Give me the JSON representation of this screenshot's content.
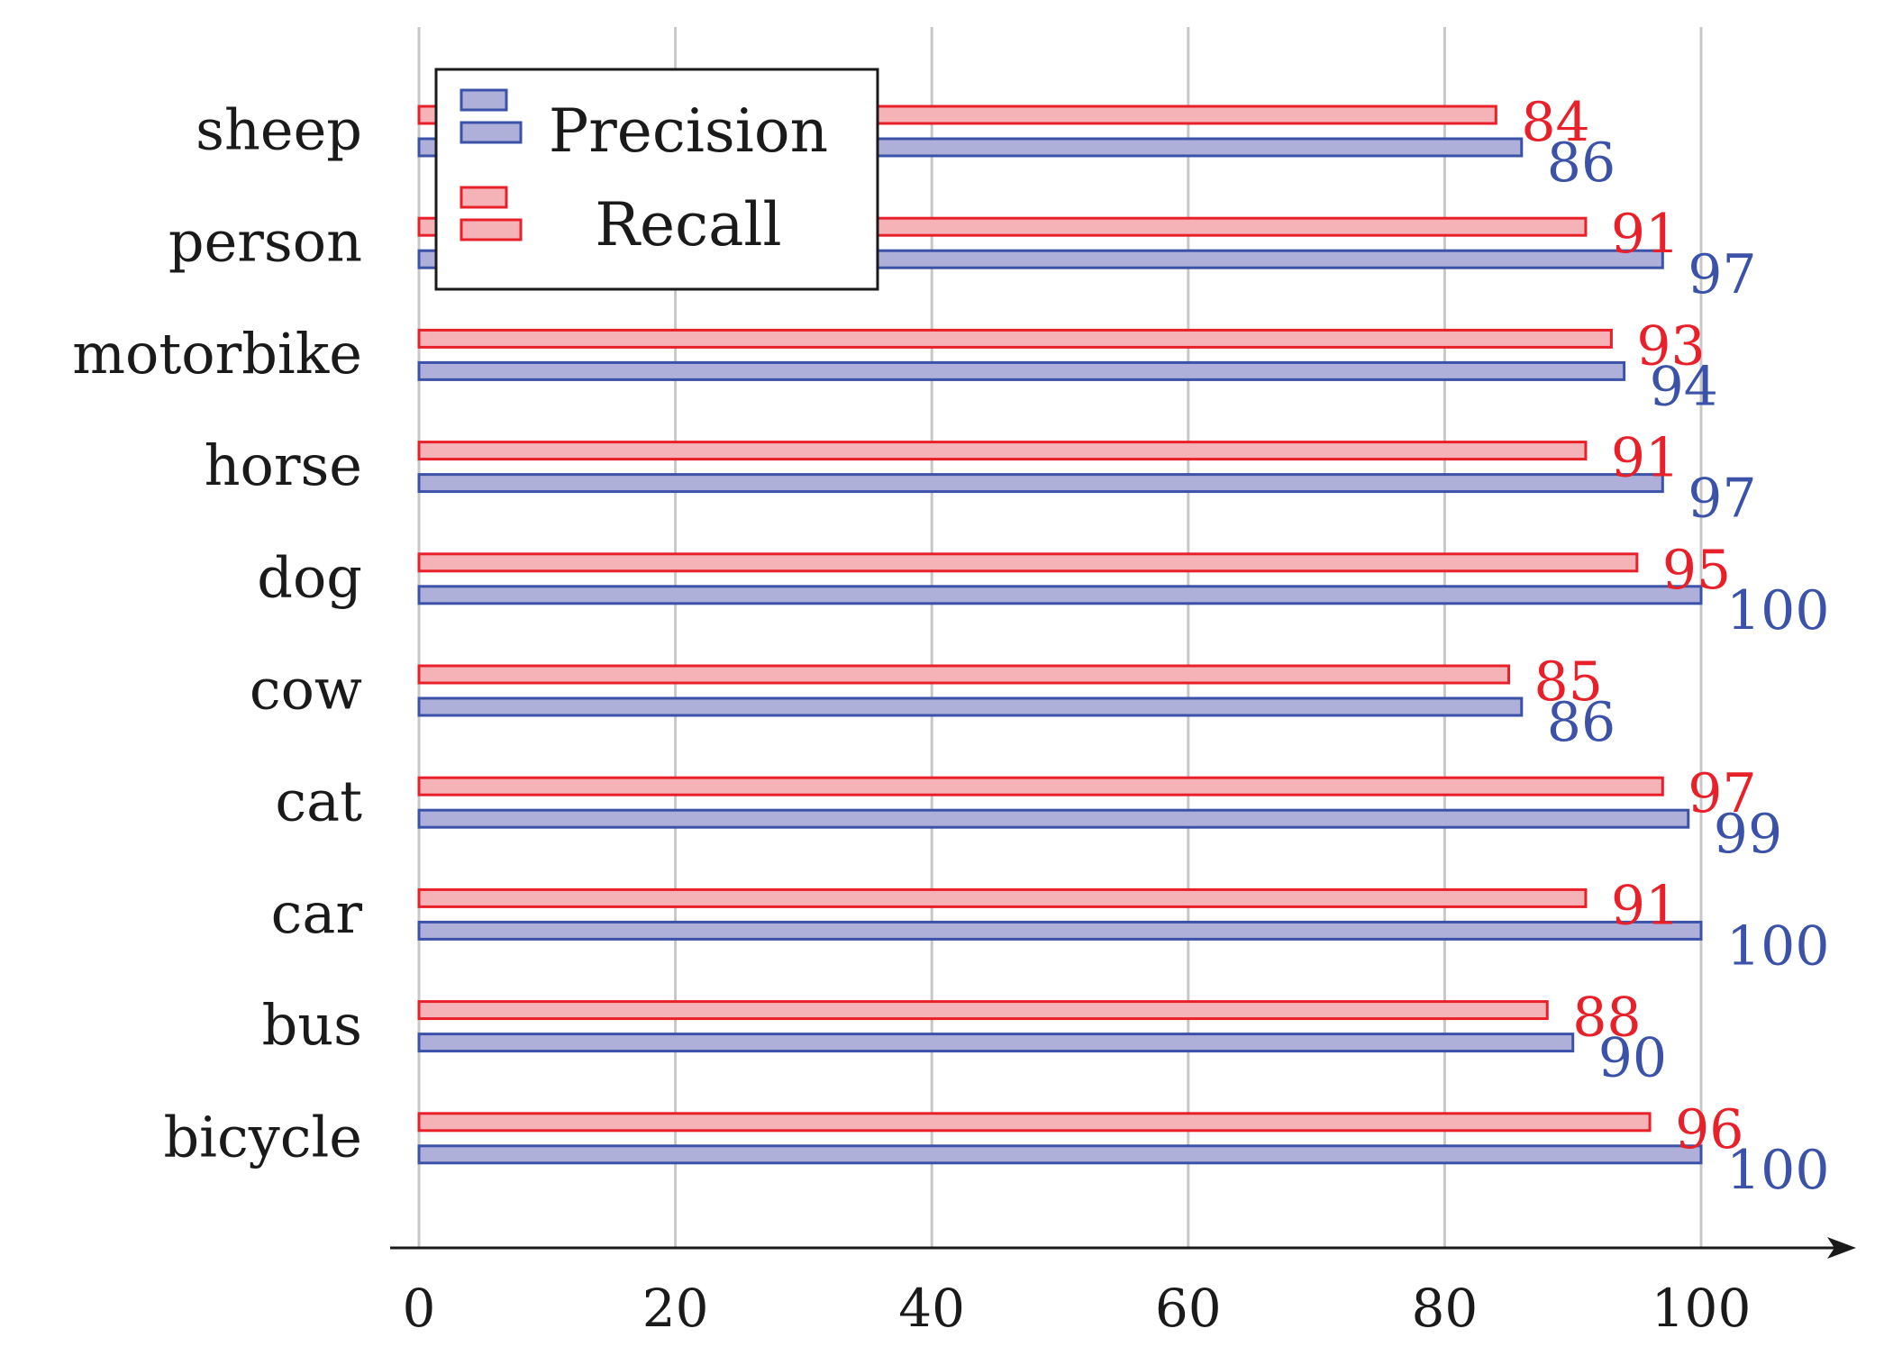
{
  "chart_data": {
    "type": "bar",
    "orientation": "horizontal",
    "title": "",
    "xlabel": "",
    "ylabel": "",
    "categories": [
      "sheep",
      "person",
      "motorbike",
      "horse",
      "dog",
      "cow",
      "cat",
      "car",
      "bus",
      "bicycle"
    ],
    "series": [
      {
        "name": "Recall",
        "values": [
          84,
          91,
          93,
          91,
          95,
          85,
          97,
          91,
          88,
          96
        ],
        "color": "#e8202a",
        "fill": "#f5b3b8"
      },
      {
        "name": "Precision",
        "values": [
          86,
          97,
          94,
          97,
          100,
          86,
          99,
          100,
          90,
          100
        ],
        "color": "#3b52a8",
        "fill": "#aeb0da"
      }
    ],
    "xlim": [
      0,
      100
    ],
    "xticks": [
      "0",
      "20",
      "40",
      "60",
      "80",
      "100"
    ],
    "grid": true,
    "legend": {
      "position": "top-left",
      "entries": [
        "Precision",
        "Recall"
      ]
    }
  }
}
